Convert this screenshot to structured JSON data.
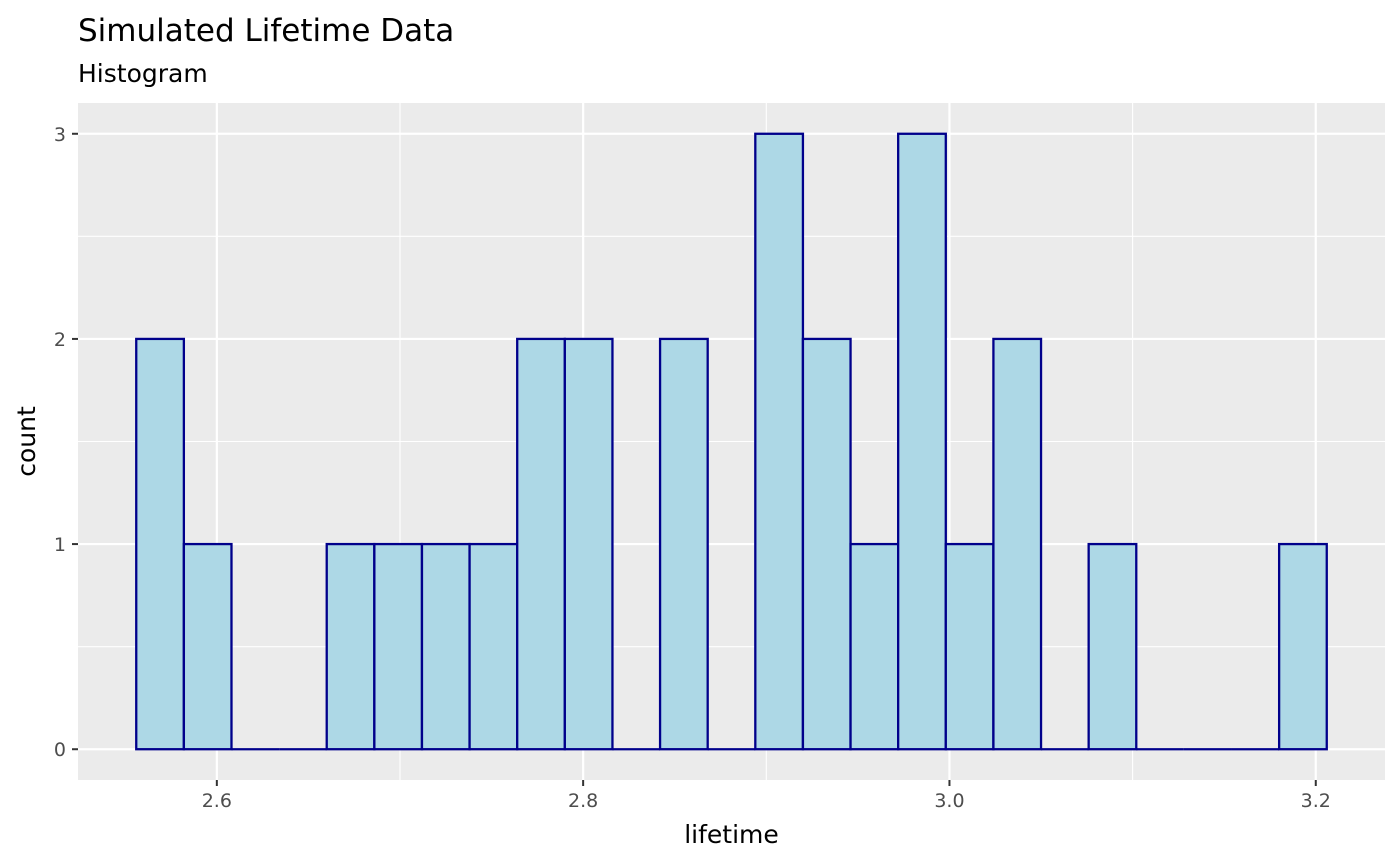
{
  "chart_data": {
    "type": "bar",
    "title": "Simulated Lifetime Data",
    "subtitle": "Histogram",
    "xlabel": "lifetime",
    "ylabel": "count",
    "bins": [
      [
        2.556,
        2.582
      ],
      [
        2.582,
        2.608
      ],
      [
        2.608,
        2.634
      ],
      [
        2.634,
        2.66
      ],
      [
        2.66,
        2.686
      ],
      [
        2.686,
        2.712
      ],
      [
        2.712,
        2.738
      ],
      [
        2.738,
        2.764
      ],
      [
        2.764,
        2.79
      ],
      [
        2.79,
        2.816
      ],
      [
        2.816,
        2.842
      ],
      [
        2.842,
        2.868
      ],
      [
        2.868,
        2.894
      ],
      [
        2.894,
        2.92
      ],
      [
        2.92,
        2.946
      ],
      [
        2.946,
        2.972
      ],
      [
        2.972,
        2.998
      ],
      [
        2.998,
        3.024
      ],
      [
        3.024,
        3.05
      ],
      [
        3.05,
        3.076
      ],
      [
        3.076,
        3.102
      ],
      [
        3.102,
        3.128
      ],
      [
        3.128,
        3.154
      ],
      [
        3.154,
        3.18
      ],
      [
        3.18,
        3.206
      ]
    ],
    "values": [
      2,
      1,
      0,
      0,
      1,
      1,
      1,
      1,
      2,
      2,
      0,
      2,
      0,
      3,
      2,
      1,
      3,
      1,
      2,
      0,
      1,
      0,
      0,
      0,
      1
    ],
    "xlim": [
      2.5242,
      3.2378
    ],
    "ylim": [
      -0.15,
      3.15
    ],
    "x_ticks": [
      2.6,
      2.8,
      3.0,
      3.2
    ],
    "x_tick_labels": [
      "2.6",
      "2.8",
      "3.0",
      "3.2"
    ],
    "y_ticks": [
      0,
      1,
      2,
      3
    ],
    "y_tick_labels": [
      "0",
      "1",
      "2",
      "3"
    ],
    "grid": true,
    "colors": {
      "panel_background": "#EBEBEB",
      "grid": "#FFFFFF",
      "bar_fill": "#ADD8E6",
      "bar_outline": "#00008B",
      "tick": "#333333"
    }
  }
}
